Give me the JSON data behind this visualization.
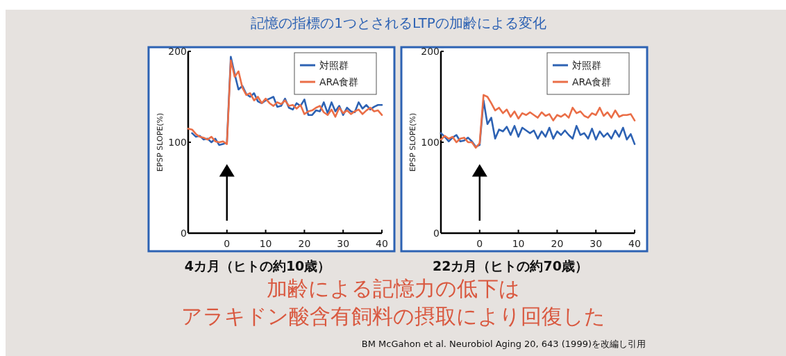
{
  "chart_data": [
    {
      "type": "line",
      "title": "記憶の指標の1つとされるLTPの加齢による変化",
      "subtitle": "4カ月（ヒトの約10歳）",
      "ylabel": "EPSP SLOPE(%)",
      "xlim": [
        -10,
        40
      ],
      "xticks": [
        0,
        10,
        20,
        30,
        40
      ],
      "ylim": [
        0,
        200
      ],
      "yticks": [
        0,
        100,
        200
      ],
      "legend": "top right",
      "grid": false,
      "ref_lines": [
        {
          "axis": "x",
          "value": 0
        }
      ],
      "x": [
        -10,
        -9,
        -8,
        -7,
        -6,
        -5,
        -4,
        -3,
        -2,
        -1,
        0,
        1,
        2,
        3,
        4,
        5,
        6,
        7,
        8,
        9,
        10,
        11,
        12,
        13,
        14,
        15,
        16,
        17,
        18,
        19,
        20,
        21,
        22,
        23,
        24,
        25,
        26,
        27,
        28,
        29,
        30,
        31,
        32,
        33,
        34,
        35,
        36,
        37,
        38,
        39,
        40
      ],
      "series": [
        {
          "name": "対照群",
          "color": "#2d62b3",
          "values": [
            null,
            110,
            106,
            107,
            103,
            104,
            100,
            104,
            97,
            98,
            100,
            194,
            175,
            158,
            162,
            153,
            150,
            154,
            145,
            143,
            146,
            148,
            150,
            139,
            140,
            148,
            138,
            136,
            143,
            140,
            147,
            130,
            130,
            135,
            134,
            144,
            132,
            144,
            134,
            140,
            130,
            138,
            134,
            133,
            144,
            137,
            141,
            136,
            139,
            141,
            141
          ]
        },
        {
          "name": "ARA食群",
          "color": "#ea6e47",
          "values": [
            115,
            114,
            109,
            106,
            105,
            103,
            106,
            101,
            100,
            101,
            98,
            190,
            172,
            178,
            160,
            152,
            154,
            146,
            150,
            143,
            148,
            143,
            140,
            144,
            142,
            146,
            140,
            141,
            137,
            141,
            131,
            134,
            135,
            138,
            140,
            133,
            130,
            136,
            128,
            138,
            132,
            135,
            131,
            134,
            136,
            131,
            135,
            138,
            134,
            135,
            130
          ]
        }
      ]
    },
    {
      "type": "line",
      "subtitle": "22カ月（ヒトの約70歳）",
      "ylabel": "EPSP SLOPE(%)",
      "xlim": [
        -10,
        40
      ],
      "xticks": [
        0,
        10,
        20,
        30,
        40
      ],
      "ylim": [
        0,
        200
      ],
      "yticks": [
        0,
        100,
        200
      ],
      "legend": "top right",
      "grid": false,
      "ref_lines": [
        {
          "axis": "x",
          "value": 0
        }
      ],
      "annotations": [
        "加齢による記憶力の低下は",
        "アラキドン酸含有飼料の摂取により回復した",
        "BM McGahon et al. Neurobiol Aging 20, 643 (1999)を改編し引用"
      ],
      "x": [
        -10,
        -9,
        -8,
        -7,
        -6,
        -5,
        -4,
        -3,
        -2,
        -1,
        0,
        1,
        2,
        3,
        4,
        5,
        6,
        7,
        8,
        9,
        10,
        11,
        12,
        13,
        14,
        15,
        16,
        17,
        18,
        19,
        20,
        21,
        22,
        23,
        24,
        25,
        26,
        27,
        28,
        29,
        30,
        31,
        32,
        33,
        34,
        35,
        36,
        37,
        38,
        39,
        40
      ],
      "series": [
        {
          "name": "対照群",
          "color": "#2d62b3",
          "values": [
            110,
            106,
            101,
            105,
            108,
            101,
            102,
            105,
            101,
            95,
            97,
            146,
            120,
            127,
            104,
            114,
            112,
            117,
            108,
            118,
            106,
            116,
            113,
            110,
            113,
            104,
            112,
            106,
            116,
            104,
            112,
            108,
            113,
            108,
            104,
            118,
            108,
            110,
            104,
            115,
            103,
            112,
            106,
            110,
            104,
            113,
            106,
            116,
            103,
            109,
            98
          ]
        },
        {
          "name": "ARA食群",
          "color": "#ea6e47",
          "values": [
            103,
            107,
            104,
            106,
            100,
            104,
            105,
            100,
            100,
            94,
            99,
            152,
            150,
            143,
            135,
            138,
            132,
            136,
            128,
            134,
            126,
            132,
            130,
            133,
            130,
            127,
            133,
            129,
            131,
            124,
            130,
            128,
            131,
            127,
            138,
            132,
            134,
            129,
            127,
            132,
            130,
            138,
            129,
            133,
            127,
            135,
            128,
            130,
            130,
            131,
            124
          ]
        }
      ]
    }
  ]
}
